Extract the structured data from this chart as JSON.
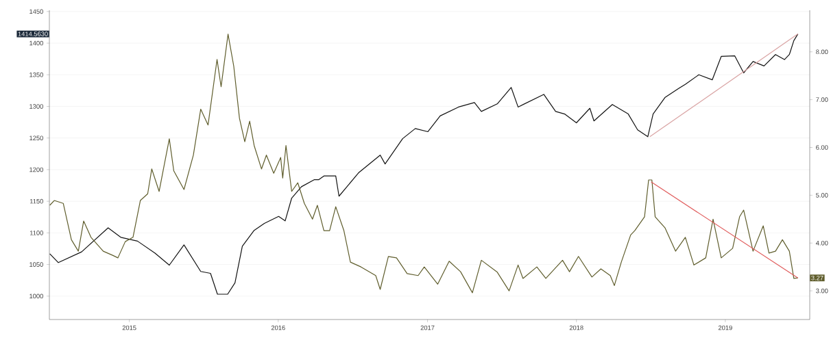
{
  "chart_data": {
    "type": "line",
    "xlim": [
      "2014-06-19",
      "2019-07-27"
    ],
    "xticks": [
      {
        "value": "2015-01-01",
        "label": "2015"
      },
      {
        "value": "2016-01-01",
        "label": "2016"
      },
      {
        "value": "2017-01-01",
        "label": "2017"
      },
      {
        "value": "2018-01-01",
        "label": "2018"
      },
      {
        "value": "2019-01-01",
        "label": "2019"
      }
    ],
    "ylim": [
      963,
      1452
    ],
    "yticks": [
      1000,
      1050,
      1100,
      1150,
      1200,
      1250,
      1300,
      1350,
      1400,
      1450
    ],
    "y2lim": [
      2.4,
      8.87
    ],
    "y2ticks": [
      {
        "value": 3,
        "label": "3.00"
      },
      {
        "value": 4,
        "label": "4.00"
      },
      {
        "value": 5,
        "label": "5.00"
      },
      {
        "value": 6,
        "label": "6.00"
      },
      {
        "value": 7,
        "label": "7.00"
      },
      {
        "value": 8,
        "label": "8.00"
      }
    ],
    "grid": "y",
    "annotations": [
      "1414.5630",
      "3.27"
    ],
    "series": [
      {
        "color": "#111111",
        "x": [
          "2014-06-20",
          "2014-07-11",
          "2014-09-06",
          "2014-11-10",
          "2014-12-11",
          "2015-01-21",
          "2015-03-05",
          "2015-04-09",
          "2015-05-15",
          "2015-06-25",
          "2015-07-19",
          "2015-08-05",
          "2015-08-30",
          "2015-09-17",
          "2015-10-05",
          "2015-11-03",
          "2015-11-28",
          "2016-01-02",
          "2016-01-18",
          "2016-02-03",
          "2016-02-27",
          "2016-03-29",
          "2016-04-09",
          "2016-04-22",
          "2016-05-21",
          "2016-05-29",
          "2016-07-16",
          "2016-09-07",
          "2016-09-19",
          "2016-11-01",
          "2016-12-02",
          "2017-01-02",
          "2017-02-01",
          "2017-03-18",
          "2017-04-26",
          "2017-05-13",
          "2017-06-21",
          "2017-07-25",
          "2017-08-11",
          "2017-10-13",
          "2017-11-11",
          "2017-12-03",
          "2018-01-01",
          "2018-02-03",
          "2018-02-13",
          "2018-03-30",
          "2018-05-08",
          "2018-05-31",
          "2018-06-25",
          "2018-07-08",
          "2018-08-06",
          "2018-09-08",
          "2018-09-25",
          "2018-10-28",
          "2018-11-30",
          "2018-12-22",
          "2019-01-24",
          "2019-02-15",
          "2019-03-10",
          "2019-04-06",
          "2019-05-04",
          "2019-05-26",
          "2019-06-07",
          "2019-06-18",
          "2019-06-28"
        ],
        "values": [
          1067,
          1053,
          1070,
          1108,
          1093,
          1087,
          1068,
          1049,
          1081,
          1039,
          1036,
          1003,
          1003,
          1021,
          1079,
          1104,
          1115,
          1126,
          1119,
          1155,
          1173,
          1184,
          1184,
          1190,
          1190,
          1158,
          1195,
          1223,
          1209,
          1249,
          1265,
          1260,
          1285,
          1299,
          1306,
          1292,
          1304,
          1330,
          1299,
          1319,
          1292,
          1288,
          1274,
          1297,
          1277,
          1303,
          1288,
          1263,
          1252,
          1288,
          1314,
          1328,
          1335,
          1350,
          1342,
          1379,
          1380,
          1353,
          1371,
          1364,
          1382,
          1374,
          1382,
          1404,
          1414.563
        ]
      },
      {
        "color": "#5f5d2c",
        "axis": "y2",
        "x": [
          "2014-06-20",
          "2014-07-01",
          "2014-07-23",
          "2014-08-12",
          "2014-08-29",
          "2014-09-11",
          "2014-09-29",
          "2014-10-29",
          "2014-11-22",
          "2014-12-04",
          "2014-12-22",
          "2015-01-10",
          "2015-01-28",
          "2015-02-15",
          "2015-02-25",
          "2015-03-15",
          "2015-04-09",
          "2015-04-20",
          "2015-05-15",
          "2015-06-07",
          "2015-06-25",
          "2015-07-13",
          "2015-08-04",
          "2015-08-14",
          "2015-08-31",
          "2015-09-14",
          "2015-09-28",
          "2015-10-11",
          "2015-10-23",
          "2015-11-03",
          "2015-11-21",
          "2015-12-03",
          "2015-12-21",
          "2016-01-07",
          "2016-01-12",
          "2016-01-20",
          "2016-02-03",
          "2016-02-18",
          "2016-03-05",
          "2016-03-25",
          "2016-04-06",
          "2016-04-22",
          "2016-05-06",
          "2016-05-21",
          "2016-06-10",
          "2016-06-26",
          "2016-07-22",
          "2016-08-27",
          "2016-09-07",
          "2016-09-27",
          "2016-10-17",
          "2016-11-12",
          "2016-12-09",
          "2016-12-24",
          "2017-01-26",
          "2017-02-23",
          "2017-03-23",
          "2017-04-21",
          "2017-05-13",
          "2017-06-21",
          "2017-07-20",
          "2017-08-11",
          "2017-08-23",
          "2017-09-26",
          "2017-10-18",
          "2017-11-28",
          "2017-12-15",
          "2018-01-06",
          "2018-02-08",
          "2018-03-02",
          "2018-03-25",
          "2018-04-04",
          "2018-04-21",
          "2018-05-14",
          "2018-05-24",
          "2018-06-17",
          "2018-06-27",
          "2018-07-05",
          "2018-07-13",
          "2018-08-06",
          "2018-09-01",
          "2018-09-25",
          "2018-10-16",
          "2018-11-14",
          "2018-12-02",
          "2018-12-22",
          "2019-01-19",
          "2019-02-05",
          "2019-02-15",
          "2019-03-10",
          "2019-04-04",
          "2019-04-18",
          "2019-05-04",
          "2019-05-21",
          "2019-06-07",
          "2019-06-18",
          "2019-06-28"
        ],
        "values": [
          4.79,
          4.89,
          4.83,
          4.07,
          3.83,
          4.46,
          4.12,
          3.83,
          3.74,
          3.69,
          4.03,
          4.12,
          4.89,
          5.03,
          5.55,
          5.08,
          6.18,
          5.51,
          5.12,
          5.84,
          6.8,
          6.47,
          7.84,
          7.27,
          8.37,
          7.7,
          6.61,
          6.12,
          6.55,
          6.04,
          5.55,
          5.84,
          5.46,
          5.79,
          5.36,
          6.04,
          5.08,
          5.26,
          4.83,
          4.5,
          4.79,
          4.26,
          4.26,
          4.76,
          4.26,
          3.6,
          3.5,
          3.32,
          3.03,
          3.72,
          3.69,
          3.36,
          3.32,
          3.5,
          3.14,
          3.62,
          3.4,
          2.96,
          3.64,
          3.39,
          3.0,
          3.54,
          3.26,
          3.5,
          3.26,
          3.64,
          3.4,
          3.72,
          3.29,
          3.46,
          3.32,
          3.11,
          3.6,
          4.17,
          4.26,
          4.55,
          5.32,
          5.32,
          4.55,
          4.32,
          3.83,
          4.12,
          3.54,
          3.69,
          4.5,
          3.69,
          3.89,
          4.55,
          4.69,
          3.83,
          4.36,
          3.79,
          3.83,
          4.07,
          3.83,
          3.26,
          3.27
        ]
      },
      {
        "type": "line",
        "color": "#d9a3a3",
        "x": [
          "2018-06-30",
          "2019-06-28"
        ],
        "values": [
          1252,
          1414.563
        ]
      },
      {
        "type": "line",
        "color": "#e05a5a",
        "axis": "y2",
        "x": [
          "2018-07-03",
          "2019-06-28"
        ],
        "values": [
          5.28,
          3.27
        ]
      }
    ]
  }
}
